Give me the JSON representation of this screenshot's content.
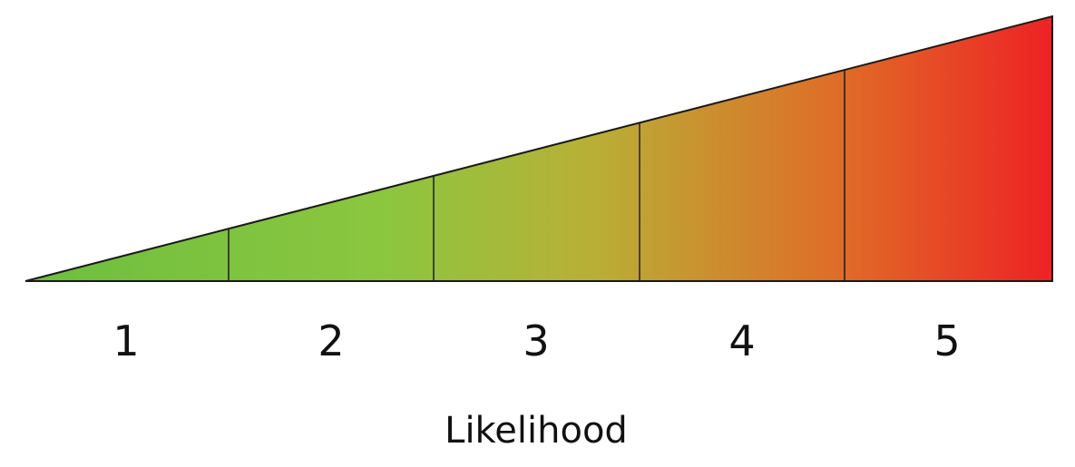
{
  "diagram": {
    "title": "",
    "axis_title": "Likelihood",
    "levels": [
      {
        "label": "1",
        "value": 1
      },
      {
        "label": "2",
        "value": 2
      },
      {
        "label": "3",
        "value": 3
      },
      {
        "label": "4",
        "value": 4
      },
      {
        "label": "5",
        "value": 5
      }
    ],
    "gradient_colors": {
      "low": "#6cbf3f",
      "mid_low": "#8cc63f",
      "mid": "#b8b036",
      "mid_high": "#e06a27",
      "high": "#ed2224"
    },
    "outline_color": "#1a1a1a"
  }
}
